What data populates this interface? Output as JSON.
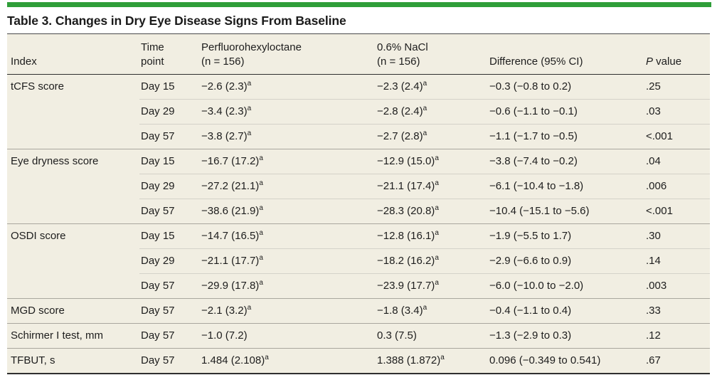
{
  "title": "Table 3. Changes in Dry Eye Disease Signs From Baseline",
  "colors": {
    "accent_green": "#2f9e39",
    "table_background": "#f1eee2",
    "dark_rule": "#2e2e2e",
    "section_rule": "#a9a79e",
    "row_rule": "#d4d2c9",
    "text": "#1d1d1d"
  },
  "table": {
    "columns": [
      {
        "label": "Index"
      },
      {
        "label": "Time\npoint"
      },
      {
        "label": "Perfluorohexyloctane\n(n = 156)"
      },
      {
        "label": "0.6% NaCl\n(n = 156)"
      },
      {
        "label": "Difference (95% CI)"
      },
      {
        "p_italic": "P",
        "p_rest": " value"
      }
    ],
    "footnote_marker": "a",
    "rows": [
      {
        "index": "tCFS score",
        "section_start": true,
        "time": "Day 15",
        "pfh": "−2.6 (2.3)",
        "pfh_sup": "a",
        "nacl": "−2.3 (2.4)",
        "nacl_sup": "a",
        "diff": "−0.3 (−0.8 to 0.2)",
        "p": ".25"
      },
      {
        "index": "",
        "section_start": false,
        "time": "Day 29",
        "pfh": "−3.4 (2.3)",
        "pfh_sup": "a",
        "nacl": "−2.8 (2.4)",
        "nacl_sup": "a",
        "diff": "−0.6 (−1.1 to −0.1)",
        "p": ".03"
      },
      {
        "index": "",
        "section_start": false,
        "time": "Day 57",
        "pfh": "−3.8 (2.7)",
        "pfh_sup": "a",
        "nacl": "−2.7 (2.8)",
        "nacl_sup": "a",
        "diff": "−1.1 (−1.7 to −0.5)",
        "p": "<.001"
      },
      {
        "index": "Eye dryness score",
        "section_start": true,
        "time": "Day 15",
        "pfh": "−16.7 (17.2)",
        "pfh_sup": "a",
        "nacl": "−12.9 (15.0)",
        "nacl_sup": "a",
        "diff": "−3.8 (−7.4 to −0.2)",
        "p": ".04"
      },
      {
        "index": "",
        "section_start": false,
        "time": "Day 29",
        "pfh": "−27.2 (21.1)",
        "pfh_sup": "a",
        "nacl": "−21.1 (17.4)",
        "nacl_sup": "a",
        "diff": "−6.1 (−10.4 to −1.8)",
        "p": ".006"
      },
      {
        "index": "",
        "section_start": false,
        "time": "Day 57",
        "pfh": "−38.6 (21.9)",
        "pfh_sup": "a",
        "nacl": "−28.3 (20.8)",
        "nacl_sup": "a",
        "diff": "−10.4 (−15.1 to −5.6)",
        "p": "<.001"
      },
      {
        "index": "OSDI score",
        "section_start": true,
        "time": "Day 15",
        "pfh": "−14.7 (16.5)",
        "pfh_sup": "a",
        "nacl": "−12.8 (16.1)",
        "nacl_sup": "a",
        "diff": "−1.9 (−5.5 to 1.7)",
        "p": ".30"
      },
      {
        "index": "",
        "section_start": false,
        "time": "Day 29",
        "pfh": "−21.1 (17.7)",
        "pfh_sup": "a",
        "nacl": "−18.2 (16.2)",
        "nacl_sup": "a",
        "diff": "−2.9 (−6.6 to 0.9)",
        "p": ".14"
      },
      {
        "index": "",
        "section_start": false,
        "time": "Day 57",
        "pfh": "−29.9 (17.8)",
        "pfh_sup": "a",
        "nacl": "−23.9 (17.7)",
        "nacl_sup": "a",
        "diff": "−6.0 (−10.0 to −2.0)",
        "p": ".003"
      },
      {
        "index": "MGD score",
        "section_start": true,
        "time": "Day 57",
        "pfh": "−2.1 (3.2)",
        "pfh_sup": "a",
        "nacl": "−1.8 (3.4)",
        "nacl_sup": "a",
        "diff": "−0.4 (−1.1 to 0.4)",
        "p": ".33"
      },
      {
        "index": "Schirmer I test, mm",
        "section_start": true,
        "time": "Day 57",
        "pfh": "−1.0 (7.2)",
        "pfh_sup": "",
        "nacl": "0.3 (7.5)",
        "nacl_sup": "",
        "diff": "−1.3 (−2.9 to 0.3)",
        "p": ".12"
      },
      {
        "index": "TFBUT, s",
        "section_start": true,
        "time": "Day 57",
        "pfh": "1.484 (2.108)",
        "pfh_sup": "a",
        "nacl": "1.388 (1.872)",
        "nacl_sup": "a",
        "diff": "0.096 (−0.349 to 0.541)",
        "p": ".67"
      }
    ]
  }
}
